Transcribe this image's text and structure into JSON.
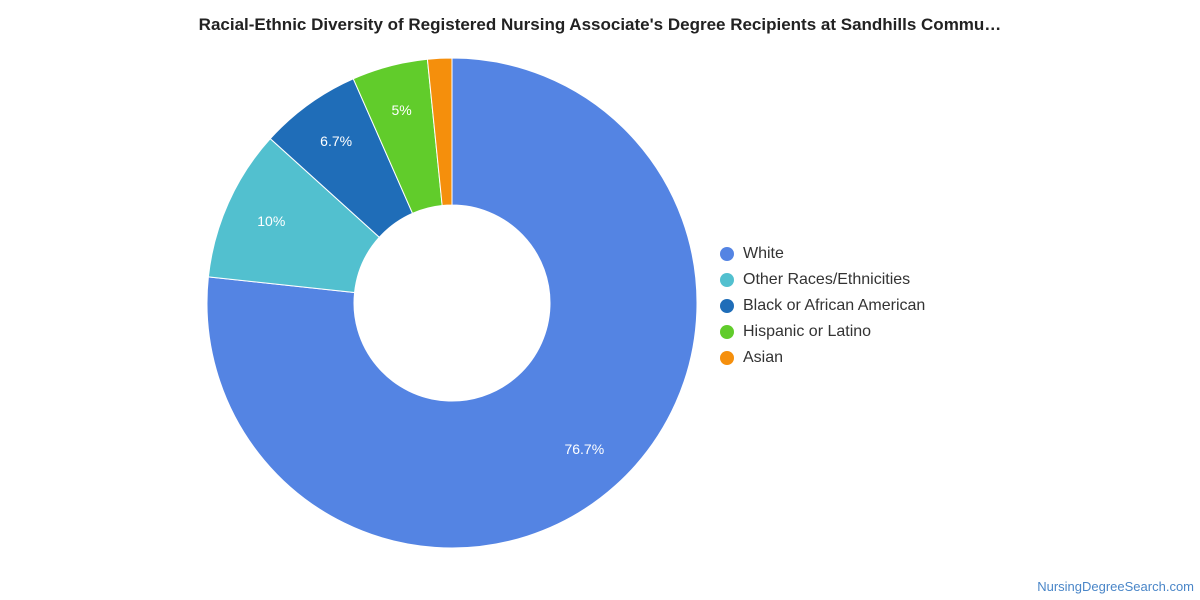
{
  "chart_data": {
    "type": "pie",
    "title": "Racial-Ethnic Diversity of Registered Nursing Associate's Degree Recipients at Sandhills Commu…",
    "donut": true,
    "legend_position": "right",
    "slices": [
      {
        "name": "White",
        "value": 76.7,
        "label": "76.7%",
        "color": "#5484e3"
      },
      {
        "name": "Other Races/Ethnicities",
        "value": 10,
        "label": "10%",
        "color": "#52c0cf"
      },
      {
        "name": "Black or African American",
        "value": 6.7,
        "label": "6.7%",
        "color": "#1f6db8"
      },
      {
        "name": "Hispanic or Latino",
        "value": 5,
        "label": "5%",
        "color": "#61cc2b"
      },
      {
        "name": "Asian",
        "value": 1.6,
        "label": "",
        "color": "#f58f0c"
      }
    ]
  },
  "source": {
    "text": "NursingDegreeSearch.com"
  }
}
